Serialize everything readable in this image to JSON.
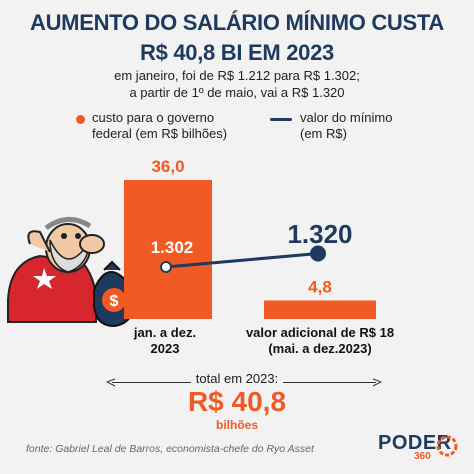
{
  "header": {
    "title_line1": "AUMENTO DO SALÁRIO MÍNIMO CUSTA",
    "title_line2": "R$ 40,8 BI EM 2023",
    "subtitle_line1": "em janeiro, foi de R$ 1.212 para R$ 1.302;",
    "subtitle_line2": "a partir de 1º de maio, vai a R$ 1.320"
  },
  "legend": {
    "cost_line1": "custo para o governo",
    "cost_line2": "federal (em R$ bilhões)",
    "wage_line1": "valor do mínimo",
    "wage_line2": "(em R$)"
  },
  "colors": {
    "cost": "#f15a22",
    "wage": "#1f3a5f"
  },
  "chart_data": {
    "type": "bar",
    "categories": [
      "jan. a dez. 2023",
      "valor adicional de R$ 18 (mai. a dez.2023)"
    ],
    "category_lines": [
      [
        "jan. a dez.",
        "2023"
      ],
      [
        "valor adicional de R$ 18",
        "(mai. a dez.2023)"
      ]
    ],
    "series": [
      {
        "name": "custo para o governo federal (em R$ bilhões)",
        "kind": "bar",
        "values": [
          36.0,
          4.8
        ],
        "labels": [
          "36,0",
          "4,8"
        ]
      },
      {
        "name": "valor do mínimo (em R$)",
        "kind": "line",
        "values": [
          1302,
          1320
        ],
        "labels": [
          "1.302",
          "1.320"
        ]
      }
    ]
  },
  "total": {
    "label": "total em 2023:",
    "value": "R$ 40,8",
    "unit": "bilhões"
  },
  "footer": {
    "source": "fonte: Gabriel Leal de Barros, economista-chefe do Ryo Asset",
    "logo": "PODER",
    "logo_sub": "360"
  }
}
